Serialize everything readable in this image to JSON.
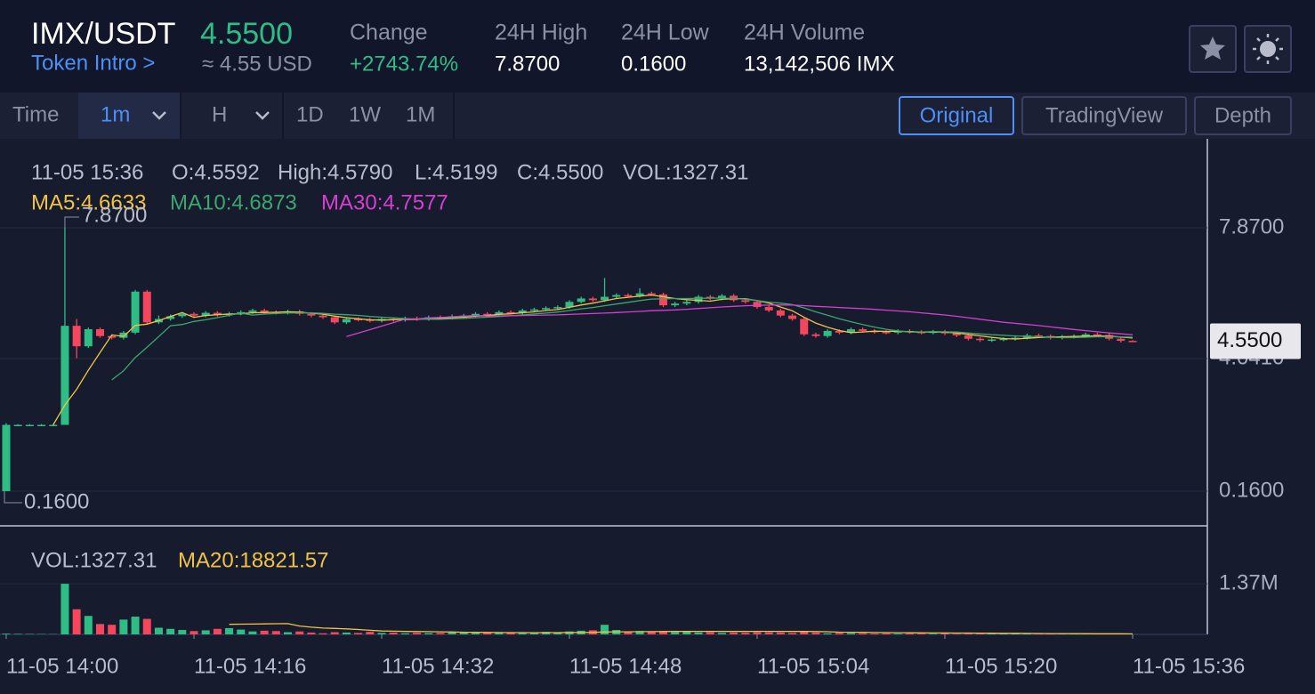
{
  "header": {
    "pair": "IMX/USDT",
    "price": "4.5500",
    "intro": "Token Intro >",
    "usd_price": "≈ 4.55 USD",
    "stats": [
      {
        "label": "Change",
        "value": "+2743.74%"
      },
      {
        "label": "24H High",
        "value": "7.8700"
      },
      {
        "label": "24H Low",
        "value": "0.1600"
      },
      {
        "label": "24H Volume",
        "value": "13,142,506 IMX"
      }
    ]
  },
  "toolbar": {
    "time_label": "Time",
    "intervals": [
      "1m",
      "H",
      "1D",
      "1W",
      "1M"
    ],
    "views": [
      "Original",
      "TradingView",
      "Depth"
    ]
  },
  "info": {
    "time": "11-05 15:36",
    "open": "O:4.5592",
    "high": "High:4.5790",
    "low": "L:4.5199",
    "close": "C:4.5500",
    "volume": "VOL:1327.31",
    "ma": [
      "MA5:4.6633",
      "MA10:4.6873",
      "MA30:4.7577"
    ]
  },
  "volume_info": {
    "volume": "VOL:1327.31",
    "ma": "MA20:18821.57"
  },
  "chart_data": {
    "type": "candlestick",
    "open": [
      0.16,
      2.1,
      2.1,
      2.1,
      2.1,
      2.1,
      5.0,
      4.4,
      4.9,
      4.7,
      4.65,
      4.8,
      6.0,
      5.1,
      5.2,
      5.28,
      5.35,
      5.3,
      5.38,
      5.32,
      5.36,
      5.4,
      5.45,
      5.4,
      5.38,
      5.42,
      5.35,
      5.3,
      5.25,
      5.1,
      5.2,
      5.18,
      5.15,
      5.2,
      5.17,
      5.22,
      5.2,
      5.25,
      5.23,
      5.28,
      5.3,
      5.35,
      5.33,
      5.4,
      5.38,
      5.45,
      5.48,
      5.52,
      5.55,
      5.7,
      5.8,
      5.75,
      5.85,
      5.9,
      5.88,
      5.95,
      5.92,
      5.6,
      5.65,
      5.7,
      5.85,
      5.8,
      5.88,
      5.75,
      5.7,
      5.55,
      5.45,
      5.3,
      5.2,
      4.75,
      4.7,
      4.85,
      4.8,
      4.9,
      4.85,
      4.82,
      4.8,
      4.85,
      4.82,
      4.8,
      4.83,
      4.78,
      4.72,
      4.62,
      4.58,
      4.6,
      4.62,
      4.65,
      4.72,
      4.7,
      4.65,
      4.68,
      4.7,
      4.75,
      4.73,
      4.62,
      4.5592
    ],
    "high": [
      2.15,
      2.12,
      2.12,
      2.12,
      2.12,
      7.87,
      5.2,
      4.95,
      4.95,
      4.75,
      4.85,
      6.05,
      6.05,
      5.3,
      5.33,
      5.4,
      5.4,
      5.43,
      5.43,
      5.41,
      5.45,
      5.5,
      5.5,
      5.45,
      5.47,
      5.47,
      5.4,
      5.35,
      5.3,
      5.25,
      5.25,
      5.23,
      5.25,
      5.25,
      5.27,
      5.27,
      5.3,
      5.3,
      5.33,
      5.35,
      5.4,
      5.4,
      5.45,
      5.45,
      5.5,
      5.53,
      5.57,
      5.6,
      5.75,
      5.85,
      5.85,
      6.4,
      5.95,
      5.95,
      6.1,
      6.0,
      5.97,
      5.7,
      5.75,
      5.9,
      5.9,
      5.93,
      5.93,
      5.8,
      5.75,
      5.6,
      5.5,
      5.35,
      5.25,
      4.8,
      4.9,
      4.9,
      4.95,
      4.95,
      4.9,
      4.87,
      4.9,
      4.9,
      4.87,
      4.88,
      4.88,
      4.83,
      4.77,
      4.67,
      4.65,
      4.67,
      4.7,
      4.77,
      4.77,
      4.75,
      4.73,
      4.75,
      4.8,
      4.8,
      4.78,
      4.67,
      4.579
    ],
    "low": [
      0.16,
      2.08,
      2.08,
      2.08,
      2.08,
      2.1,
      4.05,
      4.35,
      4.65,
      4.6,
      4.6,
      4.75,
      5.05,
      5.05,
      5.15,
      5.23,
      5.25,
      5.25,
      5.27,
      5.27,
      5.31,
      5.35,
      5.35,
      5.33,
      5.33,
      5.3,
      5.25,
      5.2,
      5.05,
      5.05,
      5.13,
      5.1,
      5.1,
      5.12,
      5.12,
      5.15,
      5.15,
      5.18,
      5.18,
      5.23,
      5.25,
      5.28,
      5.28,
      5.33,
      5.33,
      5.4,
      5.43,
      5.47,
      5.5,
      5.65,
      5.7,
      5.7,
      5.8,
      5.83,
      5.83,
      5.87,
      5.55,
      5.55,
      5.6,
      5.65,
      5.75,
      5.75,
      5.7,
      5.65,
      5.5,
      5.4,
      5.25,
      5.15,
      4.7,
      4.65,
      4.65,
      4.75,
      4.75,
      4.8,
      4.77,
      4.75,
      4.75,
      4.77,
      4.75,
      4.75,
      4.73,
      4.67,
      4.57,
      4.53,
      4.53,
      4.55,
      4.57,
      4.6,
      4.65,
      4.6,
      4.6,
      4.63,
      4.65,
      4.68,
      4.57,
      4.51,
      4.5199
    ],
    "close": [
      2.1,
      2.1,
      2.1,
      2.1,
      2.1,
      5.0,
      4.4,
      4.9,
      4.7,
      4.65,
      4.8,
      6.0,
      5.1,
      5.2,
      5.28,
      5.35,
      5.3,
      5.38,
      5.32,
      5.36,
      5.4,
      5.45,
      5.4,
      5.38,
      5.42,
      5.35,
      5.3,
      5.25,
      5.1,
      5.2,
      5.18,
      5.15,
      5.2,
      5.17,
      5.22,
      5.2,
      5.25,
      5.23,
      5.28,
      5.3,
      5.35,
      5.33,
      5.4,
      5.38,
      5.45,
      5.48,
      5.52,
      5.55,
      5.7,
      5.8,
      5.75,
      5.85,
      5.9,
      5.88,
      5.95,
      5.92,
      5.6,
      5.65,
      5.7,
      5.85,
      5.8,
      5.88,
      5.75,
      5.7,
      5.55,
      5.45,
      5.3,
      5.2,
      4.75,
      4.7,
      4.85,
      4.8,
      4.9,
      4.85,
      4.82,
      4.8,
      4.85,
      4.82,
      4.8,
      4.83,
      4.78,
      4.72,
      4.62,
      4.58,
      4.6,
      4.62,
      4.65,
      4.72,
      4.7,
      4.65,
      4.68,
      4.7,
      4.75,
      4.73,
      4.62,
      4.56,
      4.55
    ],
    "volume": [
      20000,
      15000,
      12000,
      10000,
      8000,
      1370000,
      680000,
      500000,
      280000,
      260000,
      400000,
      480000,
      420000,
      180000,
      150000,
      120000,
      90000,
      110000,
      150000,
      170000,
      130000,
      80000,
      100000,
      90000,
      60000,
      80000,
      50000,
      30000,
      60000,
      50000,
      40000,
      70000,
      40000,
      50000,
      30000,
      45000,
      35000,
      40000,
      50000,
      45000,
      40000,
      50000,
      45000,
      60000,
      40000,
      50000,
      70000,
      60000,
      80000,
      100000,
      110000,
      260000,
      120000,
      80000,
      90000,
      70000,
      90000,
      60000,
      70000,
      50000,
      60000,
      40000,
      50000,
      45000,
      60000,
      55000,
      50000,
      40000,
      70000,
      50000,
      30000,
      40000,
      35000,
      30000,
      25000,
      30000,
      20000,
      25000,
      20000,
      18000,
      25000,
      15000,
      20000,
      18000,
      15000,
      20000,
      12000,
      15000,
      10000,
      12000,
      15000,
      10000,
      12000,
      10000,
      15000,
      8000,
      1327.31
    ],
    "ylim": [
      -0.83,
      10.37
    ],
    "yticks": [
      {
        "value": 7.87,
        "label": "7.8700"
      },
      {
        "value": 4.041,
        "label": "4.0410"
      },
      {
        "value": 0.16,
        "label": "0.1600"
      }
    ],
    "vol_ylim": [
      0,
      2840000
    ],
    "vol_yticks": [
      {
        "value": 1370000,
        "label": "1.37M"
      }
    ],
    "x_labels": [
      "11-05 14:00",
      "11-05 14:16",
      "11-05 14:32",
      "11-05 14:48",
      "11-05 15:04",
      "11-05 15:20",
      "11-05 15:36"
    ],
    "max_label": "7.8700",
    "min_label": "0.1600",
    "last_label": "4.5500",
    "up_color": "#2ebd85",
    "down_color": "#f6465d",
    "ma_periods": [
      5,
      10,
      30
    ],
    "ma_colors": [
      "#f0c343",
      "#3aa86b",
      "#d63fd0"
    ],
    "vol_ma_period": 20,
    "vol_ma_color": "#f0c343",
    "grid": true
  }
}
